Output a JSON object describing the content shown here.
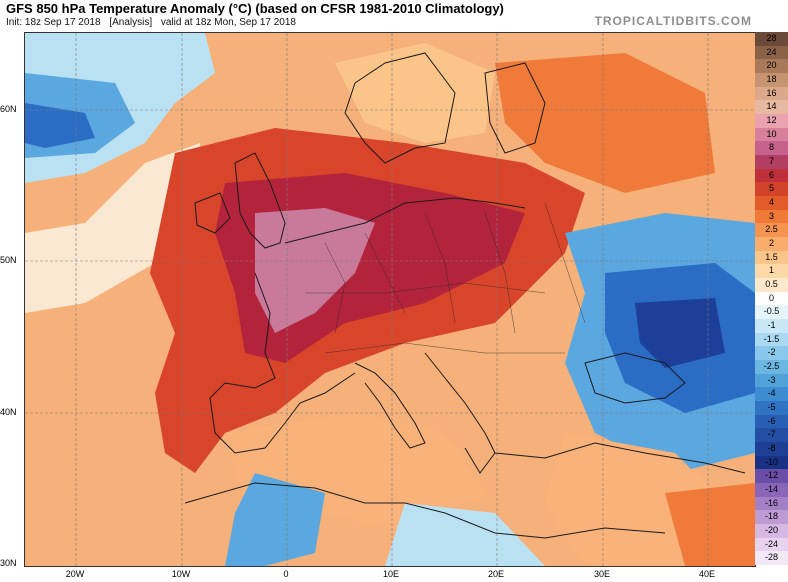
{
  "header": {
    "title": "GFS 850 hPa Temperature Anomaly (°C) (based on CFSR 1981-2010 Climatology)",
    "init": "Init: 18z Sep 17 2018",
    "analysis": "[Analysis]",
    "valid": "valid at 18z Mon, Sep 17 2018",
    "brand": "TROPICALTIDBITS.COM"
  },
  "map": {
    "latitude_labels": [
      "60N",
      "50N",
      "40N",
      "30N"
    ],
    "longitude_labels": [
      "20W",
      "10W",
      "0",
      "10E",
      "20E",
      "30E",
      "40E"
    ],
    "colors": {
      "warm_strong": "#b3243c",
      "warm": "#d9452a",
      "warm_mid": "#f07a3a",
      "warm_light": "#f9b27a",
      "neutral": "#fbe8d2",
      "cool_light": "#b9e1f2",
      "cool": "#5aa8df",
      "cool_strong": "#2b6cc4",
      "cool_deep": "#1d3f99",
      "extreme_warm": "#c97a9a"
    }
  },
  "colorbar": {
    "labels": [
      "28",
      "24",
      "20",
      "18",
      "16",
      "14",
      "12",
      "10",
      "8",
      "7",
      "6",
      "5",
      "4",
      "3",
      "2.5",
      "2",
      "1.5",
      "1",
      "0.5",
      "0",
      "-0.5",
      "-1",
      "-1.5",
      "-2",
      "-2.5",
      "-3",
      "-4",
      "-5",
      "-6",
      "-7",
      "-8",
      "-10",
      "-12",
      "-14",
      "-16",
      "-18",
      "-20",
      "-24",
      "-28"
    ],
    "colors": [
      "#6b4a3a",
      "#8a6248",
      "#a87a5a",
      "#c79472",
      "#dba88c",
      "#e7b9a3",
      "#e9a2ae",
      "#d77f9b",
      "#c5618a",
      "#b23e64",
      "#c0303a",
      "#d2432a",
      "#e25b2a",
      "#ef7a38",
      "#f49450",
      "#f8ad6a",
      "#fbc58a",
      "#fdd9aa",
      "#fde8cc",
      "#ffffff",
      "#e6f4fb",
      "#c9e7f6",
      "#aad9f1",
      "#89c8ea",
      "#6cb6e2",
      "#52a2da",
      "#3d8bd0",
      "#2f73c3",
      "#285fb4",
      "#244ea3",
      "#1f3f94",
      "#1a3286",
      "#6a4ea8",
      "#8a66b8",
      "#a57fc6",
      "#bf9bd4",
      "#d6b8e2",
      "#e7d3ee",
      "#f3e9f6"
    ]
  }
}
